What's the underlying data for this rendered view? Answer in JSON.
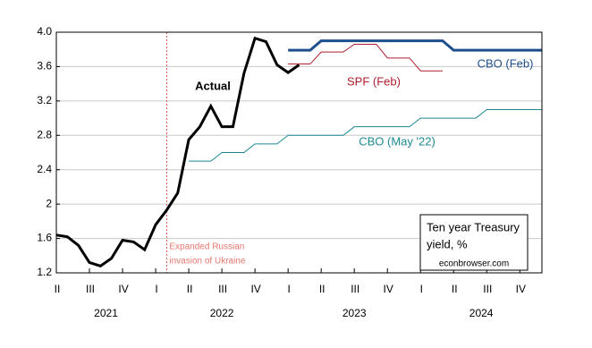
{
  "chart_data": {
    "type": "line",
    "x": [
      2021.25,
      2021.3333,
      2021.4167,
      2021.5,
      2021.5833,
      2021.6667,
      2021.75,
      2021.8333,
      2021.9167,
      2022,
      2022.0833,
      2022.1667,
      2022.25,
      2022.3333,
      2022.4167,
      2022.5,
      2022.5833,
      2022.6667,
      2022.75,
      2022.8333,
      2022.9167,
      2023,
      2023.0833,
      2023.1667,
      2023.25,
      2023.3333,
      2023.4167,
      2023.5,
      2023.5833,
      2023.6667,
      2023.75,
      2023.8333,
      2023.9167,
      2024,
      2024.0833,
      2024.1667,
      2024.25,
      2024.3333,
      2024.4167,
      2024.5,
      2024.5833,
      2024.6667,
      2024.75,
      2024.8333,
      2024.9167
    ],
    "series": [
      {
        "name": "Actual",
        "color": "#000000",
        "width": 3,
        "values": [
          1.64,
          1.62,
          1.52,
          1.32,
          1.28,
          1.37,
          1.58,
          1.56,
          1.47,
          1.76,
          1.93,
          2.13,
          2.75,
          2.9,
          3.14,
          2.9,
          2.9,
          3.52,
          3.93,
          3.89,
          3.62,
          3.53,
          3.62,
          null,
          null,
          null,
          null,
          null,
          null,
          null,
          null,
          null,
          null,
          null,
          null,
          null,
          null,
          null,
          null,
          null,
          null,
          null,
          null,
          null,
          null
        ]
      },
      {
        "name": "SPF (Feb)",
        "color": "#b01c2e",
        "width": 1,
        "values": [
          null,
          null,
          null,
          null,
          null,
          null,
          null,
          null,
          null,
          null,
          null,
          null,
          null,
          null,
          null,
          null,
          null,
          null,
          null,
          null,
          null,
          3.63,
          3.63,
          3.63,
          3.77,
          3.77,
          3.77,
          3.86,
          3.86,
          3.86,
          3.7,
          3.7,
          3.7,
          3.55,
          3.55,
          3.55,
          null,
          null,
          null,
          null,
          null,
          null,
          null,
          null,
          null
        ]
      },
      {
        "name": "CBO (Feb)",
        "color": "#1f4e8c",
        "width": 3,
        "values": [
          null,
          null,
          null,
          null,
          null,
          null,
          null,
          null,
          null,
          null,
          null,
          null,
          null,
          null,
          null,
          null,
          null,
          null,
          null,
          null,
          null,
          3.79,
          3.79,
          3.79,
          3.9,
          3.9,
          3.9,
          3.9,
          3.9,
          3.9,
          3.9,
          3.9,
          3.9,
          3.9,
          3.9,
          3.9,
          3.79,
          3.79,
          3.79,
          3.79,
          3.79,
          3.79,
          3.79,
          3.79,
          3.79
        ]
      },
      {
        "name": "CBO (May '22)",
        "color": "#1b8a92",
        "width": 1,
        "values": [
          null,
          null,
          null,
          null,
          null,
          null,
          null,
          null,
          null,
          null,
          null,
          null,
          2.5,
          2.5,
          2.5,
          2.6,
          2.6,
          2.6,
          2.7,
          2.7,
          2.7,
          2.8,
          2.8,
          2.8,
          2.8,
          2.8,
          2.8,
          2.9,
          2.9,
          2.9,
          2.9,
          2.9,
          2.9,
          3.0,
          3.0,
          3.0,
          3.0,
          3.0,
          3.0,
          3.1,
          3.1,
          3.1,
          3.1,
          3.1,
          3.1
        ]
      }
    ],
    "xlim": [
      2021.25,
      2024.9167
    ],
    "xticks": [
      {
        "value": 2021.25,
        "label": "II"
      },
      {
        "value": 2021.5,
        "label": "III"
      },
      {
        "value": 2021.75,
        "label": "IV"
      },
      {
        "value": 2022,
        "label": "I"
      },
      {
        "value": 2022.25,
        "label": "II"
      },
      {
        "value": 2022.5,
        "label": "III"
      },
      {
        "value": 2022.75,
        "label": "IV"
      },
      {
        "value": 2023,
        "label": "I"
      },
      {
        "value": 2023.25,
        "label": "II"
      },
      {
        "value": 2023.5,
        "label": "III"
      },
      {
        "value": 2023.75,
        "label": "IV"
      },
      {
        "value": 2024,
        "label": "I"
      },
      {
        "value": 2024.25,
        "label": "II"
      },
      {
        "value": 2024.5,
        "label": "III"
      },
      {
        "value": 2024.75,
        "label": "IV"
      }
    ],
    "x_groups": [
      {
        "label": "2021",
        "from": 2021.25,
        "to": 2022
      },
      {
        "label": "2022",
        "from": 2022,
        "to": 2023
      },
      {
        "label": "2023",
        "from": 2023,
        "to": 2024
      },
      {
        "label": "2024",
        "from": 2024,
        "to": 2024.9167
      }
    ],
    "ylim": [
      1.2,
      4.0
    ],
    "yticks": [
      {
        "value": 1.2,
        "label": "1.2"
      },
      1.6,
      2.0,
      2.4,
      2.8,
      3.2,
      3.6,
      {
        "value": 4.0,
        "label": "4.0"
      }
    ],
    "grid": true,
    "event_line": {
      "x": 2022.0833,
      "color": "#d9534f",
      "label": [
        "Expanded Russian",
        "invasion of Ukraine"
      ],
      "label_color": "#e8776f"
    },
    "note": [
      "Ten year Treasury",
      "yield, %"
    ],
    "source": "econbrowser.com"
  }
}
